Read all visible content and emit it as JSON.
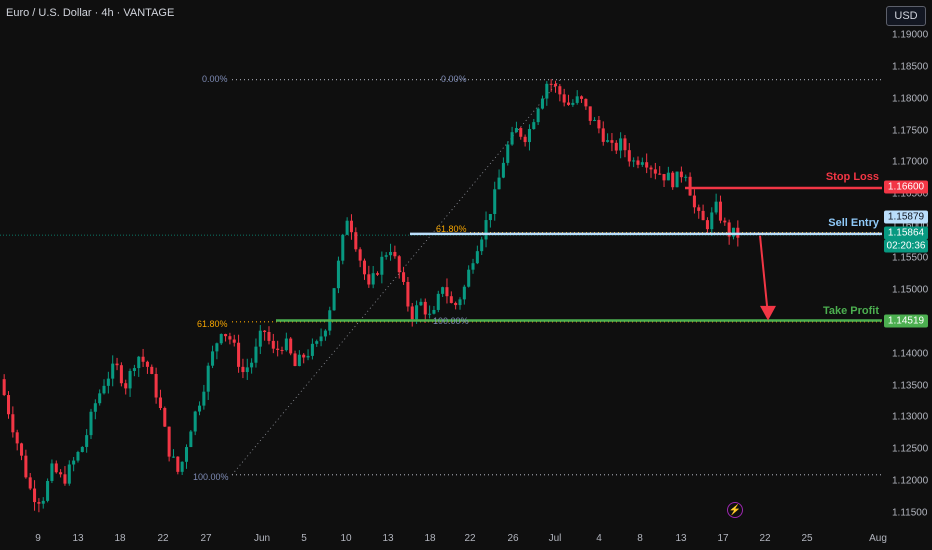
{
  "header": {
    "symbol": "Euro / U.S. Dollar · 4h · VANTAGE",
    "currency": "USD"
  },
  "chart_data": {
    "type": "candlestick",
    "title": "Euro / U.S. Dollar · 4h · VANTAGE",
    "timeframe": "4h",
    "ylim": [
      1.114,
      1.193
    ],
    "y_ticks": [
      "1.19000",
      "1.18500",
      "1.18000",
      "1.17500",
      "1.17000",
      "1.16500",
      "1.16000",
      "1.15500",
      "1.15000",
      "1.14500",
      "1.14000",
      "1.13500",
      "1.13000",
      "1.12500",
      "1.12000",
      "1.11500"
    ],
    "x_ticks": [
      "9",
      "13",
      "18",
      "22",
      "27",
      "Jun",
      "5",
      "10",
      "13",
      "18",
      "22",
      "26",
      "Jul",
      "4",
      "8",
      "13",
      "17",
      "22",
      "25",
      "Aug"
    ],
    "levels": {
      "stop_loss": {
        "label": "Stop Loss",
        "price": "1.16600",
        "color": "#f23645"
      },
      "sell_entry": {
        "label": "Sell Entry",
        "price": "1.15879",
        "color": "#90caf9"
      },
      "current": {
        "price": "1.15864",
        "countdown": "02:20:36",
        "color": "#089981"
      },
      "take_profit": {
        "label": "Take Profit",
        "price": "1.14519",
        "color": "#4caf50"
      }
    },
    "fibonacci": [
      {
        "label": "0.00%",
        "price": 1.183
      },
      {
        "label": "0.00%",
        "price": 1.183
      },
      {
        "label": "61.80%",
        "price": 1.159
      },
      {
        "label": "61.80%",
        "price": 1.145
      },
      {
        "label": "100.00%",
        "price": 1.145
      },
      {
        "label": "100.00%",
        "price": 1.121
      }
    ],
    "price_path": [
      1.136,
      1.13,
      1.124,
      1.118,
      1.117,
      1.122,
      1.12,
      1.123,
      1.126,
      1.132,
      1.136,
      1.138,
      1.135,
      1.14,
      1.138,
      1.133,
      1.125,
      1.121,
      1.128,
      1.133,
      1.139,
      1.144,
      1.142,
      1.137,
      1.139,
      1.144,
      1.14,
      1.142,
      1.138,
      1.14,
      1.141,
      1.145,
      1.153,
      1.162,
      1.156,
      1.15,
      1.154,
      1.157,
      1.152,
      1.146,
      1.148,
      1.145,
      1.151,
      1.147,
      1.15,
      1.156,
      1.16,
      1.165,
      1.172,
      1.175,
      1.174,
      1.179,
      1.183,
      1.181,
      1.179,
      1.18,
      1.177,
      1.175,
      1.172,
      1.173,
      1.17,
      1.171,
      1.169,
      1.168,
      1.167,
      1.169,
      1.162,
      1.16,
      1.163,
      1.159,
      1.1586
    ]
  },
  "annotations": {
    "live_icon": "lightning-icon"
  }
}
